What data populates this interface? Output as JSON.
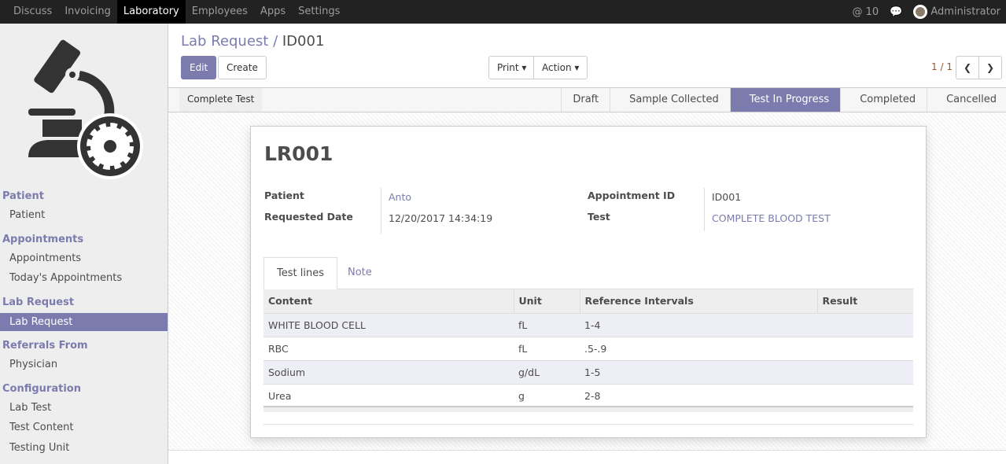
{
  "topbar": {
    "menu": [
      "Discuss",
      "Invoicing",
      "Laboratory",
      "Employees",
      "Apps",
      "Settings"
    ],
    "active": "Laboratory",
    "mentions": "@ 10",
    "user": "Administrator"
  },
  "sidebar": {
    "sections": [
      {
        "title": "Patient",
        "items": [
          "Patient"
        ]
      },
      {
        "title": "Appointments",
        "items": [
          "Appointments",
          "Today's Appointments"
        ]
      },
      {
        "title": "Lab Request",
        "items": [
          "Lab Request"
        ]
      },
      {
        "title": "Referrals From",
        "items": [
          "Physician"
        ]
      },
      {
        "title": "Configuration",
        "items": [
          "Lab Test",
          "Test Content",
          "Testing Unit"
        ]
      }
    ],
    "active": "Lab Request"
  },
  "breadcrumb": {
    "parent": "Lab Request",
    "sep": "/",
    "current": "ID001"
  },
  "buttons": {
    "edit": "Edit",
    "create": "Create",
    "print": "Print ▾",
    "action": "Action ▾",
    "complete_test": "Complete Test"
  },
  "pager": "1 / 1",
  "stages": [
    "Draft",
    "Sample Collected",
    "Test In Progress",
    "Completed",
    "Cancelled"
  ],
  "active_stage": "Test In Progress",
  "record": {
    "name": "LR001",
    "patient_label": "Patient",
    "patient": "Anto",
    "date_label": "Requested Date",
    "date": "12/20/2017 14:34:19",
    "appt_label": "Appointment ID",
    "appt": "ID001",
    "test_label": "Test",
    "test": "COMPLETE BLOOD TEST"
  },
  "tabs": [
    "Test lines",
    "Note"
  ],
  "table": {
    "headers": [
      "Content",
      "Unit",
      "Reference Intervals",
      "Result"
    ],
    "rows": [
      [
        "WHITE BLOOD CELL",
        "fL",
        "1-4",
        ""
      ],
      [
        "RBC",
        "fL",
        ".5-.9",
        ""
      ],
      [
        "Sodium",
        "g/dL",
        "1-5",
        ""
      ],
      [
        "Urea",
        "g",
        "2-8",
        ""
      ]
    ]
  },
  "colors": {
    "accent": "#7c7bad",
    "topbar": "#222222"
  }
}
